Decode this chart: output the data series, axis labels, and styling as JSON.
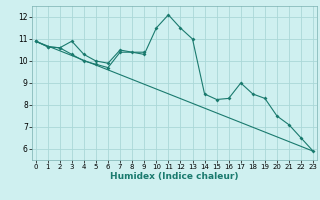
{
  "bg_color": "#cff0f0",
  "grid_color": "#aad8d8",
  "line_color": "#1a7a6e",
  "line1_x": [
    0,
    1,
    2,
    3,
    4,
    5,
    6,
    7,
    9,
    10,
    11,
    12,
    13,
    14,
    15,
    16,
    17,
    18,
    19,
    20,
    21,
    22,
    23
  ],
  "line1_y": [
    10.9,
    10.65,
    10.6,
    10.9,
    10.3,
    10.0,
    9.9,
    10.5,
    10.3,
    11.5,
    12.1,
    11.5,
    11.0,
    8.5,
    8.25,
    8.3,
    9.0,
    8.5,
    8.3,
    7.5,
    7.1,
    6.5,
    5.9
  ],
  "line2_x": [
    0,
    1,
    2,
    3,
    4,
    5,
    6,
    7,
    8,
    9
  ],
  "line2_y": [
    10.9,
    10.65,
    10.6,
    10.3,
    10.0,
    9.85,
    9.7,
    10.4,
    10.4,
    10.4
  ],
  "line3_x": [
    0,
    23
  ],
  "line3_y": [
    10.9,
    5.9
  ],
  "xlim": [
    -0.3,
    23.3
  ],
  "ylim": [
    5.5,
    12.5
  ],
  "yticks": [
    6,
    7,
    8,
    9,
    10,
    11,
    12
  ],
  "xticks": [
    0,
    1,
    2,
    3,
    4,
    5,
    6,
    7,
    8,
    9,
    10,
    11,
    12,
    13,
    14,
    15,
    16,
    17,
    18,
    19,
    20,
    21,
    22,
    23
  ],
  "xlabel": "Humidex (Indice chaleur)",
  "xlabel_fontsize": 6.5,
  "tick_fontsize": 5.0
}
